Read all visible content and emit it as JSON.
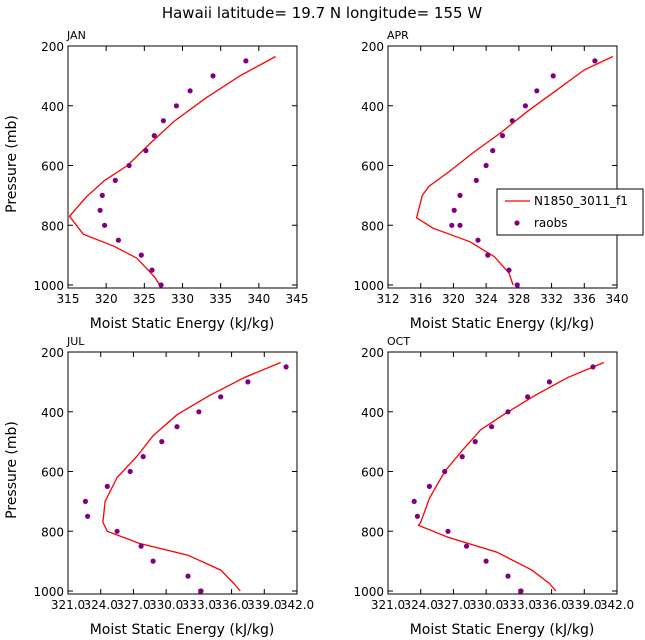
{
  "title": "Hawaii  latitude= 19.7 N longitude= 155 W",
  "legend": {
    "model_label": "N1850_3011_f1",
    "obs_label": "raobs"
  },
  "colors": {
    "model": "#ff0000",
    "obs": "#800080",
    "axis": "#000000"
  },
  "chart_data": [
    {
      "type": "line",
      "panel_label": "JAN",
      "xlabel": "Moist Static Energy (kJ/kg)",
      "ylabel": "Pressure (mb)",
      "xlim": [
        315,
        345
      ],
      "ylim": [
        1010,
        200
      ],
      "xticks": [
        315,
        320,
        325,
        330,
        335,
        340,
        345
      ],
      "xtick_labels": [
        "315",
        "320",
        "325",
        "330",
        "335",
        "340",
        "345"
      ],
      "yticks": [
        200,
        400,
        600,
        800,
        1000
      ],
      "ytick_labels": [
        "200",
        "400",
        "600",
        "800",
        "1000"
      ],
      "series": [
        {
          "name": "N1850_3011_f1",
          "style": "line",
          "x": [
            342.2,
            337.5,
            333.0,
            329.0,
            325.8,
            322.8,
            319.8,
            317.4,
            315.2,
            317.0,
            321.0,
            324.0,
            325.5,
            326.4,
            327.0
          ],
          "y": [
            235,
            300,
            375,
            450,
            525,
            600,
            650,
            705,
            770,
            830,
            870,
            910,
            950,
            975,
            1000
          ]
        },
        {
          "name": "raobs",
          "style": "markers",
          "x": [
            338.3,
            334.0,
            331.0,
            329.2,
            327.5,
            326.3,
            325.2,
            323.0,
            321.2,
            319.5,
            319.2,
            319.8,
            321.6,
            324.6,
            326.0,
            327.2
          ],
          "y": [
            250,
            300,
            350,
            400,
            450,
            500,
            550,
            600,
            650,
            700,
            750,
            800,
            850,
            900,
            950,
            1000
          ]
        }
      ]
    },
    {
      "type": "line",
      "panel_label": "APR",
      "xlabel": "Moist Static Energy (kJ/kg)",
      "ylabel": "",
      "xlim": [
        312,
        340
      ],
      "ylim": [
        1010,
        200
      ],
      "xticks": [
        312,
        316,
        320,
        324,
        328,
        332,
        336,
        340
      ],
      "xtick_labels": [
        "312",
        "316",
        "320",
        "324",
        "328",
        "332",
        "336",
        "340"
      ],
      "yticks": [
        200,
        400,
        600,
        800,
        1000
      ],
      "ytick_labels": [
        "200",
        "400",
        "600",
        "800",
        "1000"
      ],
      "series": [
        {
          "name": "N1850_3011_f1",
          "style": "line",
          "x": [
            339.5,
            336.0,
            332.5,
            329.0,
            325.8,
            322.5,
            319.5,
            317.0,
            316.2,
            315.5,
            317.5,
            322.0,
            325.0,
            326.8,
            327.3
          ],
          "y": [
            235,
            280,
            350,
            420,
            490,
            555,
            620,
            670,
            700,
            775,
            810,
            855,
            905,
            960,
            1000
          ]
        },
        {
          "name": "raobs",
          "style": "markers",
          "x": [
            337.3,
            332.2,
            330.2,
            328.8,
            327.2,
            326.0,
            324.8,
            324.0,
            322.8,
            320.8,
            320.1,
            319.8,
            320.8,
            323.0,
            324.2,
            326.8,
            327.8
          ],
          "y": [
            250,
            300,
            350,
            400,
            450,
            500,
            550,
            600,
            650,
            700,
            750,
            800,
            800,
            850,
            900,
            950,
            1000
          ]
        }
      ]
    },
    {
      "type": "line",
      "panel_label": "JUL",
      "xlabel": "Moist Static Energy (kJ/kg)",
      "ylabel": "Pressure (mb)",
      "xlim": [
        321.0,
        342.0
      ],
      "ylim": [
        1010,
        200
      ],
      "xticks": [
        321.0,
        324.0,
        327.0,
        330.0,
        333.0,
        336.0,
        339.0,
        342.0
      ],
      "xtick_labels": [
        "321.0",
        "324.0",
        "327.0",
        "330.0",
        "333.0",
        "336.0",
        "339.0",
        "342.0"
      ],
      "yticks": [
        200,
        400,
        600,
        800,
        1000
      ],
      "ytick_labels": [
        "200",
        "400",
        "600",
        "800",
        "1000"
      ],
      "series": [
        {
          "name": "N1850_3011_f1",
          "style": "line",
          "x": [
            340.5,
            337.2,
            334.0,
            331.0,
            328.8,
            327.3,
            325.5,
            324.4,
            324.2,
            324.6,
            327.5,
            332.0,
            335.0,
            336.2,
            336.8
          ],
          "y": [
            235,
            285,
            345,
            410,
            480,
            550,
            620,
            700,
            770,
            800,
            840,
            880,
            930,
            975,
            1000
          ]
        },
        {
          "name": "raobs",
          "style": "markers",
          "x": [
            341.0,
            337.5,
            335.0,
            333.0,
            331.0,
            329.6,
            327.9,
            326.7,
            324.6,
            322.6,
            322.8,
            325.5,
            327.7,
            328.8,
            332.0,
            333.2
          ],
          "y": [
            250,
            300,
            350,
            400,
            450,
            500,
            550,
            600,
            650,
            700,
            750,
            800,
            850,
            900,
            950,
            1000
          ]
        }
      ]
    },
    {
      "type": "line",
      "panel_label": "OCT",
      "xlabel": "Moist Static Energy (kJ/kg)",
      "ylabel": "",
      "xlim": [
        321.0,
        342.0
      ],
      "ylim": [
        1010,
        200
      ],
      "xticks": [
        321.0,
        324.0,
        327.0,
        330.0,
        333.0,
        336.0,
        339.0,
        342.0
      ],
      "xtick_labels": [
        "321.0",
        "324.0",
        "327.0",
        "330.0",
        "333.0",
        "336.0",
        "339.0",
        "342.0"
      ],
      "yticks": [
        200,
        400,
        600,
        800,
        1000
      ],
      "ytick_labels": [
        "200",
        "400",
        "600",
        "800",
        "1000"
      ],
      "series": [
        {
          "name": "N1850_3011_f1",
          "style": "line",
          "x": [
            340.8,
            337.5,
            334.5,
            331.8,
            329.5,
            327.8,
            326.2,
            324.8,
            324.0,
            323.8,
            326.5,
            331.0,
            334.2,
            335.8,
            336.4
          ],
          "y": [
            235,
            285,
            345,
            405,
            460,
            530,
            600,
            690,
            770,
            780,
            820,
            870,
            930,
            975,
            1000
          ]
        },
        {
          "name": "raobs",
          "style": "markers",
          "x": [
            339.8,
            335.8,
            333.8,
            332.0,
            330.5,
            329.0,
            327.8,
            326.2,
            324.8,
            323.4,
            323.7,
            326.5,
            328.2,
            330.0,
            332.0,
            333.2
          ],
          "y": [
            250,
            300,
            350,
            400,
            450,
            500,
            550,
            600,
            650,
            700,
            750,
            800,
            850,
            900,
            950,
            1000
          ]
        }
      ]
    }
  ]
}
